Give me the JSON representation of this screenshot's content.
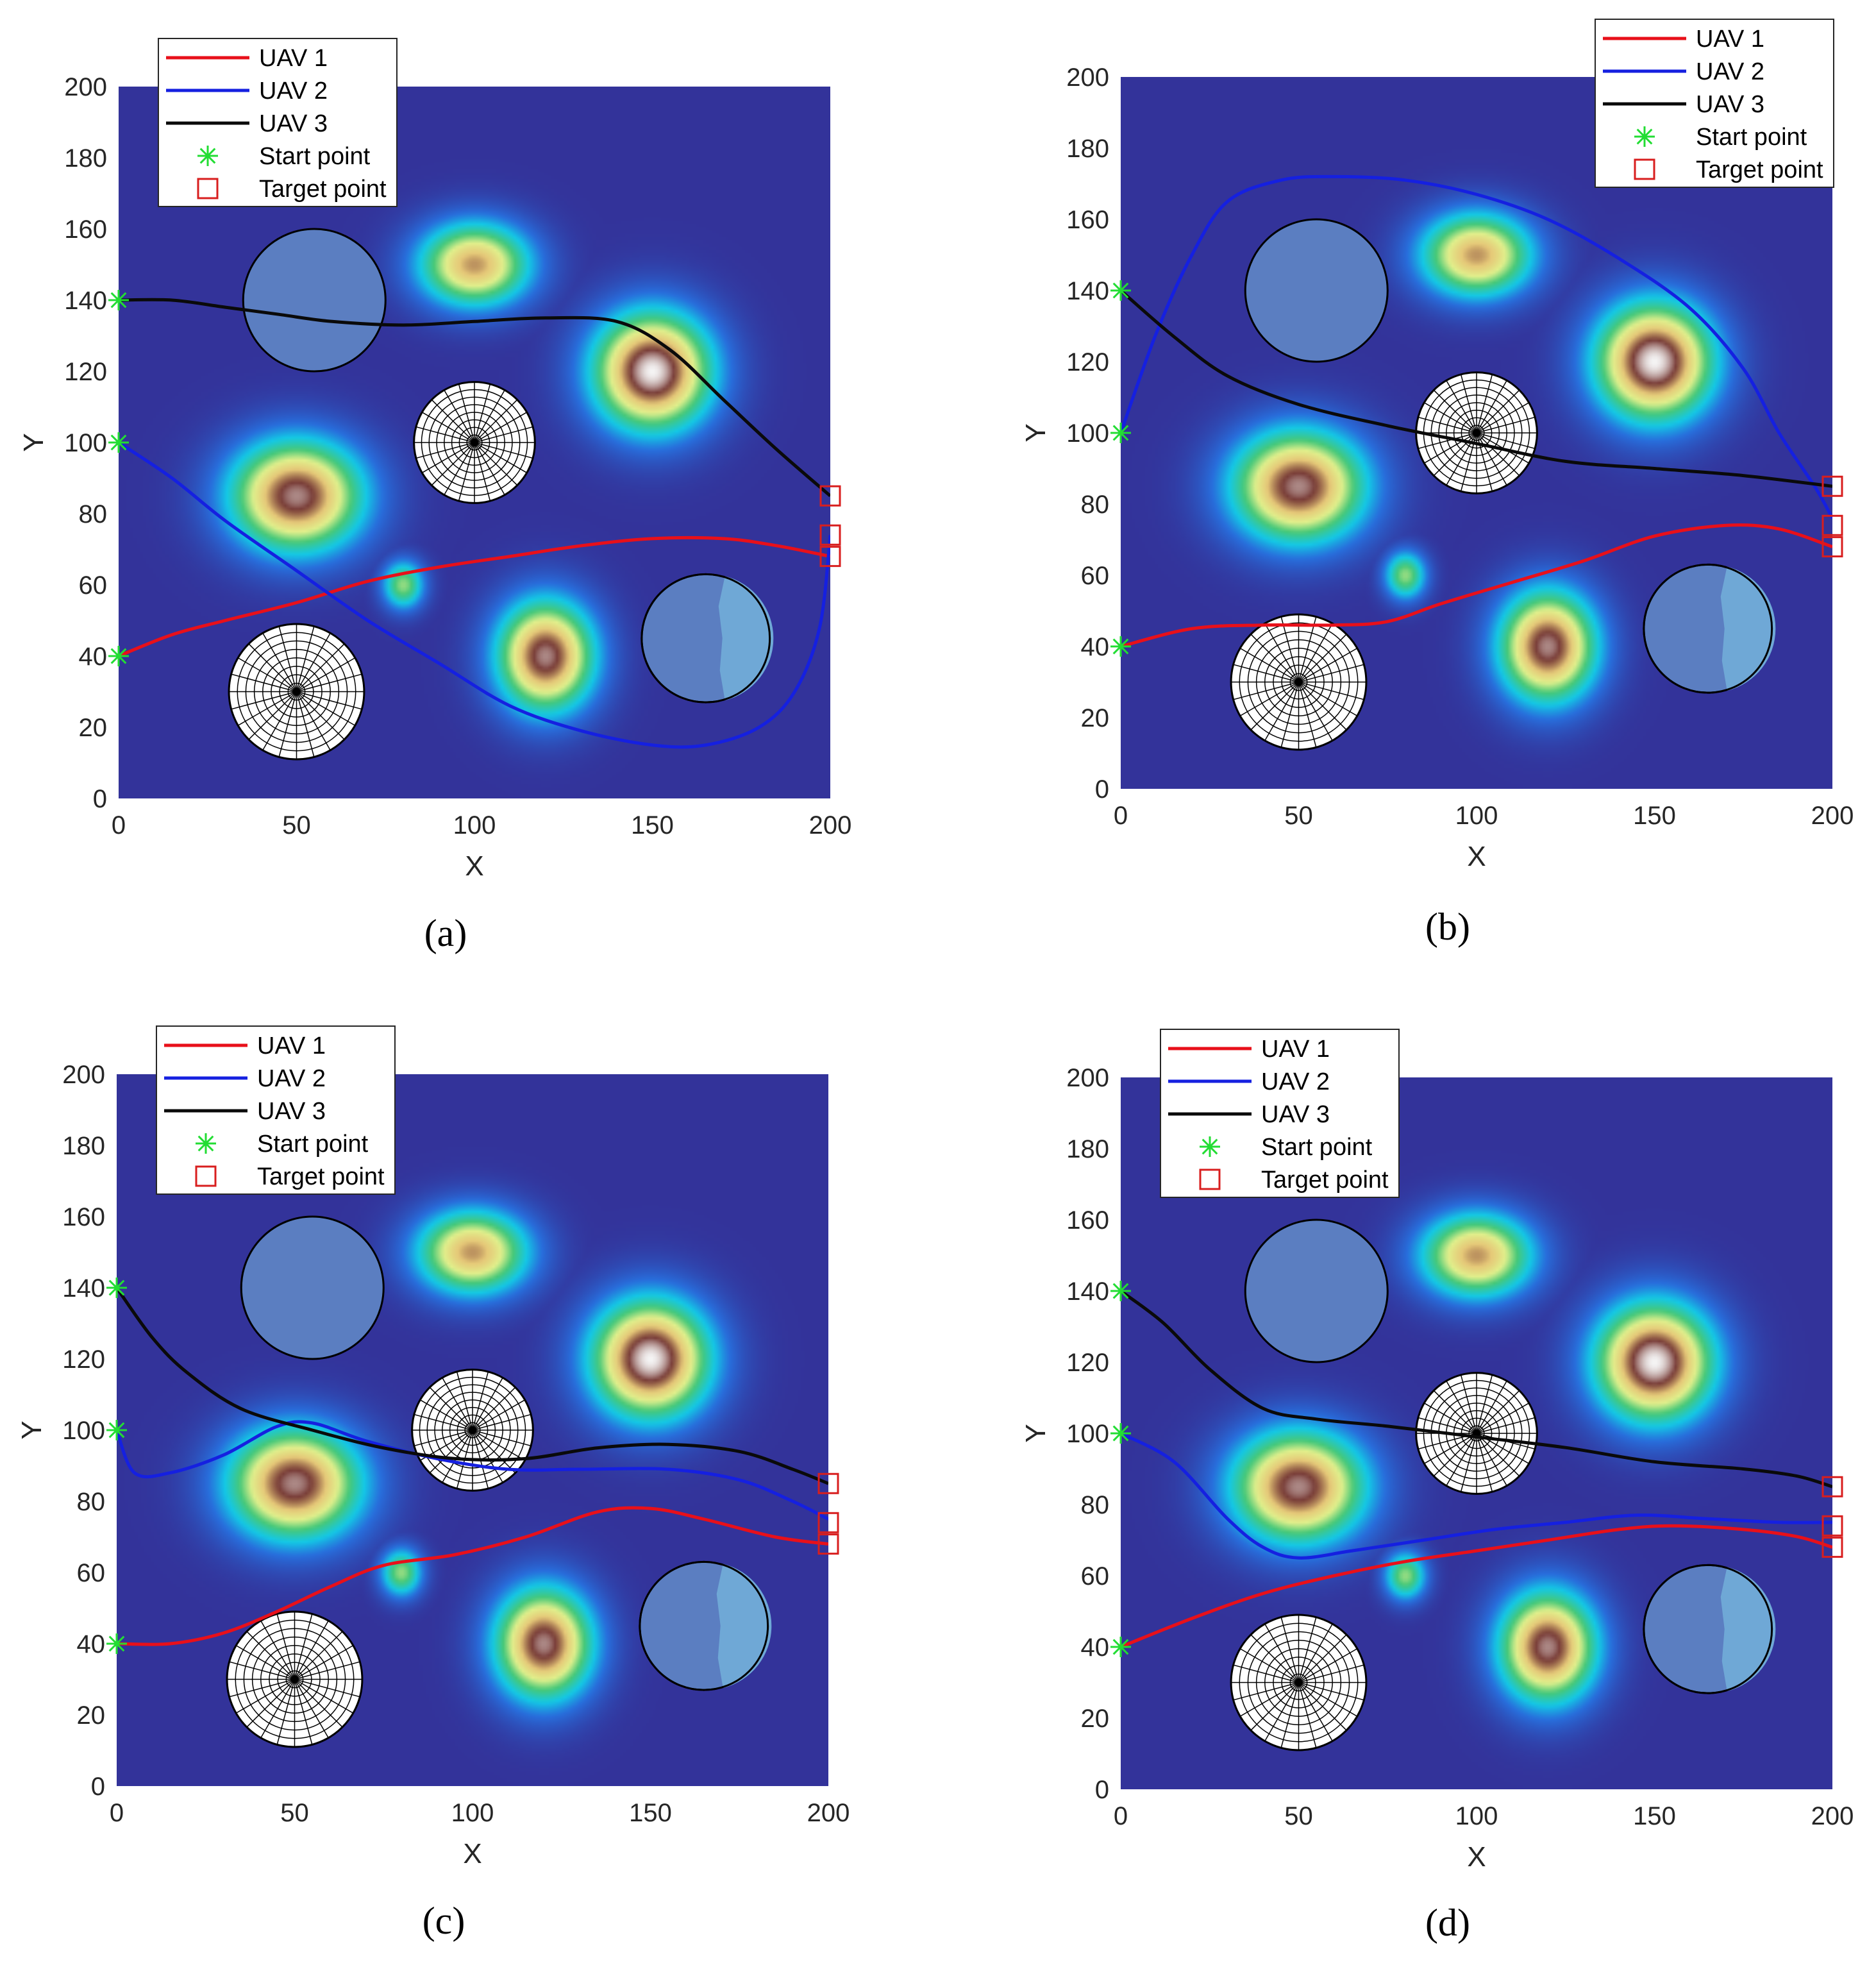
{
  "figure": {
    "colors": {
      "background": "#33339a",
      "uav1": "#e8101a",
      "uav2": "#1520e0",
      "uav3": "#0a0a0a",
      "start": "#22dd33",
      "target": "#d81e1e",
      "circle_fill": "#5b7ec1",
      "circle_fill_light": "#6fa8d6"
    },
    "legend": [
      "UAV 1",
      "UAV 2",
      "UAV 3",
      "Start point",
      "Target point"
    ]
  },
  "chart_data": [
    {
      "type": "line",
      "panel": "(a)",
      "xlabel": "X",
      "ylabel": "Y",
      "xlim": [
        0,
        200
      ],
      "ylim": [
        0,
        200
      ],
      "xticks": [
        "0",
        "50",
        "100",
        "150",
        "200"
      ],
      "yticks": [
        "0",
        "20",
        "40",
        "60",
        "80",
        "100",
        "120",
        "140",
        "160",
        "180",
        "200"
      ],
      "legend_position": "top-left",
      "series": [
        {
          "name": "UAV 1",
          "x": [
            0,
            15,
            30,
            50,
            70,
            90,
            110,
            130,
            150,
            170,
            185,
            200
          ],
          "y": [
            40,
            46,
            50,
            55,
            61,
            65,
            68,
            71,
            73,
            73,
            71,
            68
          ]
        },
        {
          "name": "UAV 2",
          "x": [
            0,
            15,
            30,
            50,
            70,
            90,
            110,
            130,
            150,
            165,
            180,
            190,
            197,
            200
          ],
          "y": [
            100,
            90,
            78,
            64,
            50,
            38,
            26,
            19,
            15,
            15,
            20,
            30,
            48,
            74
          ]
        },
        {
          "name": "UAV 3",
          "x": [
            0,
            15,
            30,
            45,
            60,
            80,
            100,
            120,
            140,
            155,
            170,
            185,
            200
          ],
          "y": [
            140,
            140,
            138,
            136,
            134,
            133,
            134,
            135,
            134,
            126,
            112,
            98,
            85
          ]
        }
      ],
      "start_points": [
        [
          0,
          40
        ],
        [
          0,
          100
        ],
        [
          0,
          140
        ]
      ],
      "target_points": [
        [
          200,
          68
        ],
        [
          200,
          74
        ],
        [
          200,
          85
        ]
      ]
    },
    {
      "type": "line",
      "panel": "(b)",
      "xlabel": "X",
      "ylabel": "Y",
      "xlim": [
        0,
        200
      ],
      "ylim": [
        0,
        200
      ],
      "xticks": [
        "0",
        "50",
        "100",
        "150",
        "200"
      ],
      "yticks": [
        "0",
        "20",
        "40",
        "60",
        "80",
        "100",
        "120",
        "140",
        "160",
        "180",
        "200"
      ],
      "legend_position": "top-right",
      "series": [
        {
          "name": "UAV 1",
          "x": [
            0,
            20,
            40,
            60,
            75,
            90,
            110,
            130,
            150,
            170,
            185,
            200
          ],
          "y": [
            40,
            45,
            46,
            46,
            47,
            52,
            58,
            64,
            71,
            74,
            73,
            68
          ]
        },
        {
          "name": "UAV 2",
          "x": [
            0,
            10,
            20,
            30,
            45,
            60,
            80,
            100,
            120,
            140,
            160,
            175,
            185,
            195,
            200
          ],
          "y": [
            100,
            128,
            150,
            165,
            171,
            172,
            171,
            167,
            160,
            149,
            135,
            118,
            100,
            85,
            76
          ]
        },
        {
          "name": "UAV 3",
          "x": [
            0,
            15,
            30,
            50,
            75,
            100,
            125,
            150,
            175,
            200
          ],
          "y": [
            140,
            127,
            116,
            108,
            102,
            97,
            92,
            90,
            88,
            85
          ]
        }
      ],
      "start_points": [
        [
          0,
          40
        ],
        [
          0,
          100
        ],
        [
          0,
          140
        ]
      ],
      "target_points": [
        [
          200,
          68
        ],
        [
          200,
          74
        ],
        [
          200,
          85
        ]
      ]
    },
    {
      "type": "line",
      "panel": "(c)",
      "xlabel": "X",
      "ylabel": "Y",
      "xlim": [
        0,
        200
      ],
      "ylim": [
        0,
        200
      ],
      "xticks": [
        "0",
        "50",
        "100",
        "150",
        "200"
      ],
      "yticks": [
        "0",
        "20",
        "40",
        "60",
        "80",
        "100",
        "120",
        "140",
        "160",
        "180",
        "200"
      ],
      "legend_position": "top-left",
      "series": [
        {
          "name": "UAV 1",
          "x": [
            0,
            15,
            30,
            45,
            60,
            75,
            95,
            115,
            135,
            150,
            165,
            185,
            200
          ],
          "y": [
            40,
            40,
            43,
            49,
            56,
            62,
            65,
            70,
            77,
            78,
            75,
            70,
            68
          ]
        },
        {
          "name": "UAV 2",
          "x": [
            0,
            5,
            15,
            30,
            45,
            55,
            70,
            90,
            110,
            130,
            155,
            175,
            190,
            200
          ],
          "y": [
            100,
            88,
            88,
            93,
            101,
            102,
            97,
            92,
            89,
            89,
            89,
            86,
            80,
            75
          ]
        },
        {
          "name": "UAV 3",
          "x": [
            0,
            10,
            20,
            35,
            55,
            75,
            95,
            115,
            135,
            155,
            175,
            190,
            200
          ],
          "y": [
            140,
            126,
            116,
            106,
            100,
            95,
            92,
            92,
            95,
            96,
            94,
            89,
            85
          ]
        }
      ],
      "start_points": [
        [
          0,
          40
        ],
        [
          0,
          100
        ],
        [
          0,
          140
        ]
      ],
      "target_points": [
        [
          200,
          68
        ],
        [
          200,
          74
        ],
        [
          200,
          85
        ]
      ]
    },
    {
      "type": "line",
      "panel": "(d)",
      "xlabel": "X",
      "ylabel": "Y",
      "xlim": [
        0,
        200
      ],
      "ylim": [
        0,
        200
      ],
      "xticks": [
        "0",
        "50",
        "100",
        "150",
        "200"
      ],
      "yticks": [
        "0",
        "20",
        "40",
        "60",
        "80",
        "100",
        "120",
        "140",
        "160",
        "180",
        "200"
      ],
      "legend_position": "top-left",
      "series": [
        {
          "name": "UAV 1",
          "x": [
            0,
            20,
            40,
            60,
            80,
            100,
            120,
            140,
            155,
            175,
            190,
            200
          ],
          "y": [
            40,
            48,
            55,
            60,
            64,
            67,
            70,
            73,
            74,
            73,
            71,
            68
          ]
        },
        {
          "name": "UAV 2",
          "x": [
            0,
            15,
            30,
            40,
            50,
            65,
            85,
            105,
            125,
            145,
            165,
            185,
            200
          ],
          "y": [
            100,
            92,
            76,
            68,
            65,
            67,
            70,
            73,
            75,
            77,
            76,
            75,
            75
          ]
        },
        {
          "name": "UAV 3",
          "x": [
            0,
            12,
            25,
            40,
            55,
            75,
            100,
            125,
            150,
            175,
            190,
            200
          ],
          "y": [
            140,
            131,
            118,
            107,
            104,
            102,
            99,
            96,
            92,
            90,
            88,
            85
          ]
        }
      ],
      "start_points": [
        [
          0,
          40
        ],
        [
          0,
          100
        ],
        [
          0,
          140
        ]
      ],
      "target_points": [
        [
          200,
          68
        ],
        [
          200,
          74
        ],
        [
          200,
          85
        ]
      ]
    }
  ],
  "environment": {
    "threat_fields": [
      {
        "x": 100,
        "y": 150,
        "sx": 16,
        "sy": 12,
        "peak": 0.8
      },
      {
        "x": 150,
        "y": 120,
        "sx": 17,
        "sy": 17,
        "peak": 1.0
      },
      {
        "x": 50,
        "y": 85,
        "sx": 19,
        "sy": 16,
        "peak": 0.93
      },
      {
        "x": 80,
        "y": 60,
        "sx": 6,
        "sy": 7,
        "peak": 0.55
      },
      {
        "x": 120,
        "y": 40,
        "sx": 14,
        "sy": 16,
        "peak": 0.93
      }
    ],
    "flat_obstacles": [
      {
        "x": 55,
        "y": 140,
        "r": 20
      },
      {
        "x": 165,
        "y": 45,
        "r": 18
      }
    ],
    "radar_obstacles": [
      {
        "x": 100,
        "y": 100,
        "r": 17
      },
      {
        "x": 50,
        "y": 30,
        "r": 19
      }
    ]
  }
}
